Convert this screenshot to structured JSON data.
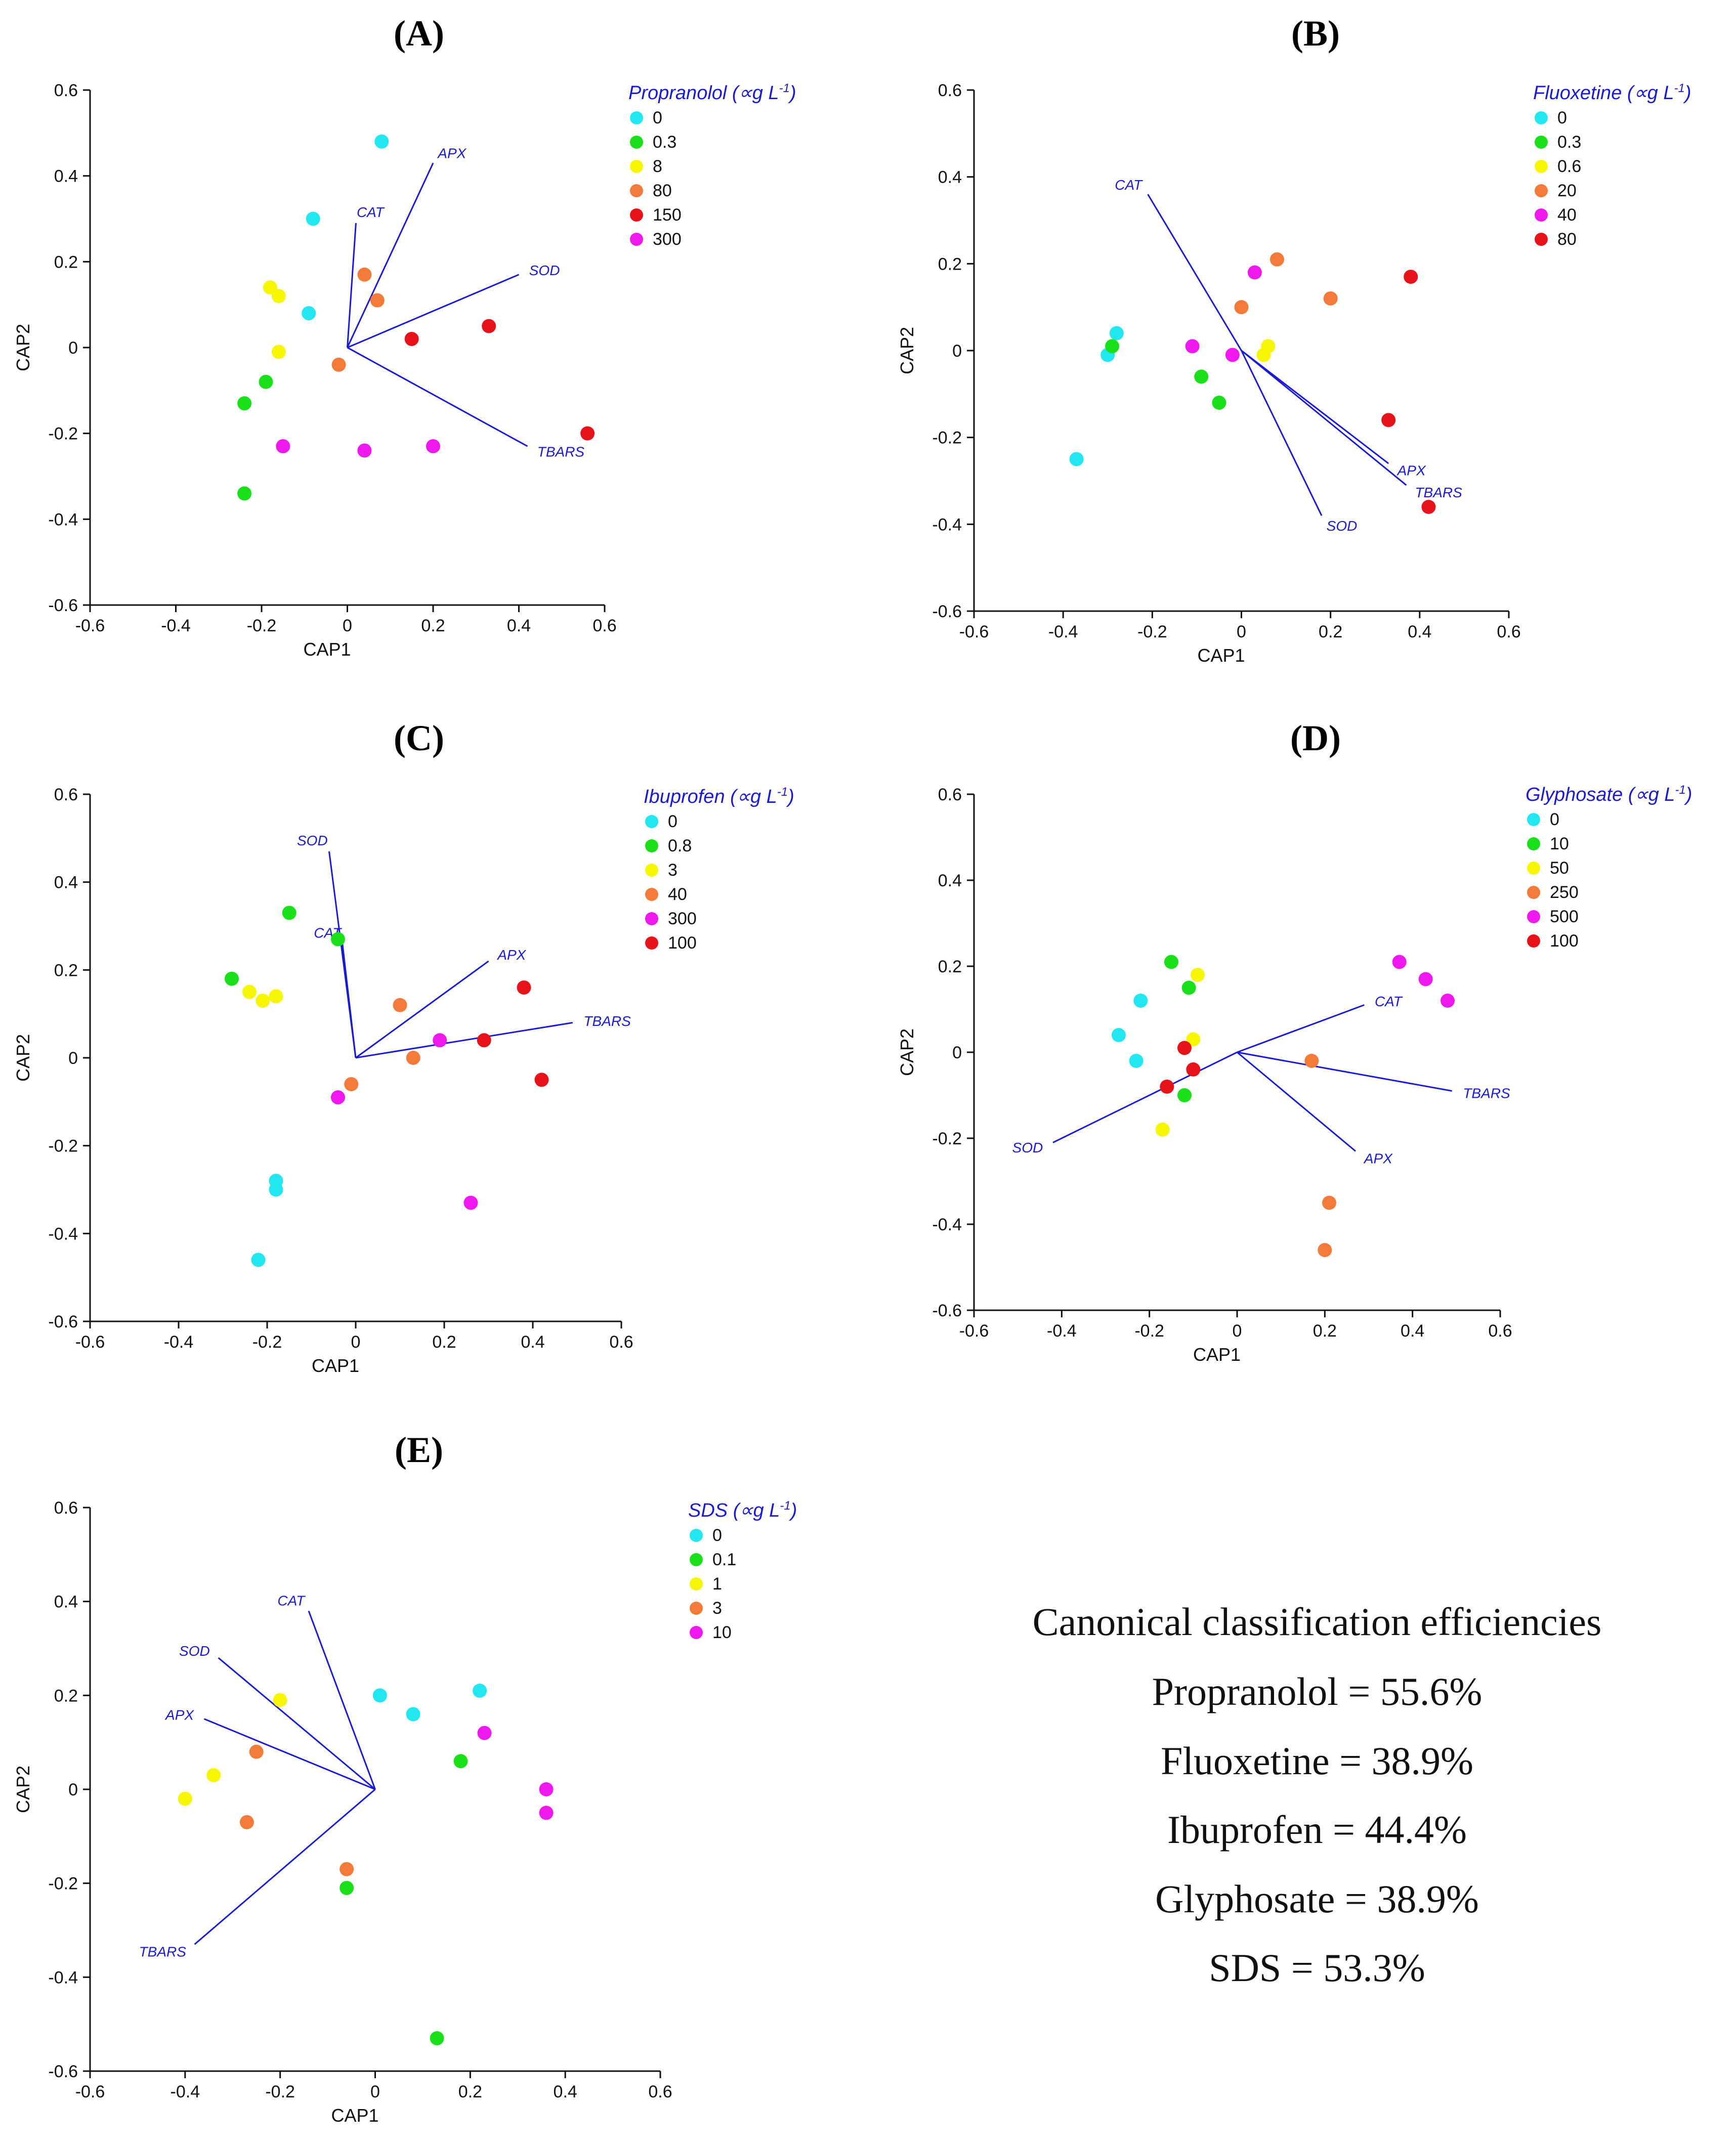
{
  "colors": {
    "cyan": "#22e6f0",
    "green": "#1ae01a",
    "yellow": "#f6f600",
    "orange": "#f47a3a",
    "red": "#e8121a",
    "magenta": "#ef18ef",
    "vector": "#1a1ad0",
    "axis": "#111111"
  },
  "chart_data": [
    {
      "type": "scatter",
      "panel": "(A)",
      "xlabel": "CAP1",
      "ylabel": "CAP2",
      "xlim": [
        -0.6,
        0.6
      ],
      "ylim": [
        -0.6,
        0.6
      ],
      "xticks": [
        "-0.6",
        "-0.4",
        "-0.2",
        "0",
        "0.2",
        "0.4",
        "0.6"
      ],
      "yticks": [
        "-0.6",
        "-0.4",
        "-0.2",
        "0",
        "0.2",
        "0.4",
        "0.6"
      ],
      "legend_title": "Propranolol (∝g L",
      "legend_sup": "-1",
      "legend_close": ")",
      "legend_placement": "top-right",
      "series": [
        {
          "name": "0",
          "color": "cyan",
          "points": [
            [
              0.08,
              0.48
            ],
            [
              -0.08,
              0.3
            ],
            [
              -0.09,
              0.08
            ]
          ]
        },
        {
          "name": "0.3",
          "color": "green",
          "points": [
            [
              -0.19,
              -0.08
            ],
            [
              -0.24,
              -0.13
            ],
            [
              -0.24,
              -0.34
            ]
          ]
        },
        {
          "name": "8",
          "color": "yellow",
          "points": [
            [
              -0.18,
              0.14
            ],
            [
              -0.16,
              0.12
            ],
            [
              -0.16,
              -0.01
            ]
          ]
        },
        {
          "name": "80",
          "color": "orange",
          "points": [
            [
              0.04,
              0.17
            ],
            [
              0.07,
              0.11
            ],
            [
              -0.02,
              -0.04
            ]
          ]
        },
        {
          "name": "150",
          "color": "red",
          "points": [
            [
              0.15,
              0.02
            ],
            [
              0.33,
              0.05
            ],
            [
              0.56,
              -0.2
            ]
          ]
        },
        {
          "name": "300",
          "color": "magenta",
          "points": [
            [
              -0.15,
              -0.23
            ],
            [
              0.04,
              -0.24
            ],
            [
              0.2,
              -0.23
            ]
          ]
        }
      ],
      "vectors": [
        {
          "name": "APX",
          "x": 0.2,
          "y": 0.43
        },
        {
          "name": "CAT",
          "x": 0.02,
          "y": 0.29
        },
        {
          "name": "SOD",
          "x": 0.4,
          "y": 0.17
        },
        {
          "name": "TBARS",
          "x": 0.42,
          "y": -0.23
        }
      ]
    },
    {
      "type": "scatter",
      "panel": "(B)",
      "xlabel": "CAP1",
      "ylabel": "CAP2",
      "xlim": [
        -0.6,
        0.6
      ],
      "ylim": [
        -0.6,
        0.6
      ],
      "xticks": [
        "-0.6",
        "-0.4",
        "-0.2",
        "0",
        "0.2",
        "0.4",
        "0.6"
      ],
      "yticks": [
        "-0.6",
        "-0.4",
        "-0.2",
        "0",
        "0.2",
        "0.4",
        "0.6"
      ],
      "legend_title": "Fluoxetine (∝g L",
      "legend_sup": "-1",
      "legend_close": ")",
      "legend_placement": "top-right",
      "series": [
        {
          "name": "0",
          "color": "cyan",
          "points": [
            [
              -0.28,
              0.04
            ],
            [
              -0.3,
              -0.01
            ],
            [
              -0.37,
              -0.25
            ]
          ]
        },
        {
          "name": "0.3",
          "color": "green",
          "points": [
            [
              -0.29,
              0.01
            ],
            [
              -0.09,
              -0.06
            ],
            [
              -0.05,
              -0.12
            ]
          ]
        },
        {
          "name": "0.6",
          "color": "yellow",
          "points": [
            [
              0.06,
              0.01
            ],
            [
              0.05,
              -0.01
            ]
          ]
        },
        {
          "name": "20",
          "color": "orange",
          "points": [
            [
              0.08,
              0.21
            ],
            [
              0.0,
              0.1
            ],
            [
              0.2,
              0.12
            ]
          ]
        },
        {
          "name": "40",
          "color": "magenta",
          "points": [
            [
              0.03,
              0.18
            ],
            [
              -0.11,
              0.01
            ],
            [
              -0.02,
              -0.01
            ]
          ]
        },
        {
          "name": "80",
          "color": "red",
          "points": [
            [
              0.38,
              0.17
            ],
            [
              0.33,
              -0.16
            ],
            [
              0.42,
              -0.36
            ]
          ]
        }
      ],
      "vectors": [
        {
          "name": "CAT",
          "x": -0.21,
          "y": 0.36
        },
        {
          "name": "APX",
          "x": 0.33,
          "y": -0.26
        },
        {
          "name": "TBARS",
          "x": 0.37,
          "y": -0.31
        },
        {
          "name": "SOD",
          "x": 0.18,
          "y": -0.38
        }
      ]
    },
    {
      "type": "scatter",
      "panel": "(C)",
      "xlabel": "CAP1",
      "ylabel": "CAP2",
      "xlim": [
        -0.6,
        0.6
      ],
      "ylim": [
        -0.6,
        0.6
      ],
      "xticks": [
        "-0.6",
        "-0.4",
        "-0.2",
        "0",
        "0.2",
        "0.4",
        "0.6"
      ],
      "yticks": [
        "-0.6",
        "-0.4",
        "-0.2",
        "0",
        "0.2",
        "0.4",
        "0.6"
      ],
      "legend_title": "Ibuprofen (∝g L",
      "legend_sup": "-1",
      "legend_close": ")",
      "legend_placement": "top-right",
      "series": [
        {
          "name": "0",
          "color": "cyan",
          "points": [
            [
              -0.18,
              -0.28
            ],
            [
              -0.18,
              -0.3
            ],
            [
              -0.22,
              -0.46
            ]
          ]
        },
        {
          "name": "0.8",
          "color": "green",
          "points": [
            [
              -0.15,
              0.33
            ],
            [
              -0.04,
              0.27
            ],
            [
              -0.28,
              0.18
            ]
          ]
        },
        {
          "name": "3",
          "color": "yellow",
          "points": [
            [
              -0.24,
              0.15
            ],
            [
              -0.18,
              0.14
            ],
            [
              -0.21,
              0.13
            ]
          ]
        },
        {
          "name": "40",
          "color": "orange",
          "points": [
            [
              0.1,
              0.12
            ],
            [
              0.13,
              0.0
            ],
            [
              -0.01,
              -0.06
            ]
          ]
        },
        {
          "name": "300",
          "color": "magenta",
          "points": [
            [
              0.19,
              0.04
            ],
            [
              -0.04,
              -0.09
            ],
            [
              0.26,
              -0.33
            ]
          ]
        },
        {
          "name": "100",
          "color": "red",
          "points": [
            [
              0.38,
              0.16
            ],
            [
              0.29,
              0.04
            ],
            [
              0.42,
              -0.05
            ]
          ]
        }
      ],
      "vectors": [
        {
          "name": "SOD",
          "x": -0.06,
          "y": 0.47
        },
        {
          "name": "CAT",
          "x": -0.03,
          "y": 0.26
        },
        {
          "name": "APX",
          "x": 0.3,
          "y": 0.22
        },
        {
          "name": "TBARS",
          "x": 0.49,
          "y": 0.08
        }
      ]
    },
    {
      "type": "scatter",
      "panel": "(D)",
      "xlabel": "CAP1",
      "ylabel": "CAP2",
      "xlim": [
        -0.6,
        0.6
      ],
      "ylim": [
        -0.6,
        0.6
      ],
      "xticks": [
        "-0.6",
        "-0.4",
        "-0.2",
        "0",
        "0.2",
        "0.4",
        "0.6"
      ],
      "yticks": [
        "-0.6",
        "-0.4",
        "-0.2",
        "0",
        "0.2",
        "0.4",
        "0.6"
      ],
      "legend_title": "Glyphosate (∝g L",
      "legend_sup": "-1",
      "legend_close": ")",
      "legend_placement": "top-right",
      "series": [
        {
          "name": "0",
          "color": "cyan",
          "points": [
            [
              -0.22,
              0.12
            ],
            [
              -0.27,
              0.04
            ],
            [
              -0.23,
              -0.02
            ]
          ]
        },
        {
          "name": "10",
          "color": "green",
          "points": [
            [
              -0.15,
              0.21
            ],
            [
              -0.11,
              0.15
            ],
            [
              -0.12,
              -0.1
            ]
          ]
        },
        {
          "name": "50",
          "color": "yellow",
          "points": [
            [
              -0.09,
              0.18
            ],
            [
              -0.1,
              0.03
            ],
            [
              -0.17,
              -0.18
            ]
          ]
        },
        {
          "name": "250",
          "color": "orange",
          "points": [
            [
              0.17,
              -0.02
            ],
            [
              0.21,
              -0.35
            ],
            [
              0.2,
              -0.46
            ]
          ]
        },
        {
          "name": "500",
          "color": "magenta",
          "points": [
            [
              0.37,
              0.21
            ],
            [
              0.43,
              0.17
            ],
            [
              0.48,
              0.12
            ]
          ]
        },
        {
          "name": "100",
          "color": "red",
          "points": [
            [
              -0.12,
              0.01
            ],
            [
              -0.1,
              -0.04
            ],
            [
              -0.16,
              -0.08
            ]
          ]
        }
      ],
      "vectors": [
        {
          "name": "CAT",
          "x": 0.29,
          "y": 0.11
        },
        {
          "name": "TBARS",
          "x": 0.49,
          "y": -0.09
        },
        {
          "name": "APX",
          "x": 0.27,
          "y": -0.23
        },
        {
          "name": "SOD",
          "x": -0.42,
          "y": -0.21
        }
      ]
    },
    {
      "type": "scatter",
      "panel": "(E)",
      "xlabel": "CAP1",
      "ylabel": "CAP2",
      "xlim": [
        -0.6,
        0.6
      ],
      "ylim": [
        -0.6,
        0.6
      ],
      "xticks": [
        "-0.6",
        "-0.4",
        "-0.2",
        "0",
        "0.2",
        "0.4",
        "0.6"
      ],
      "yticks": [
        "-0.6",
        "-0.4",
        "-0.2",
        "0",
        "0.2",
        "0.4",
        "0.6"
      ],
      "legend_title": "SDS (∝g L",
      "legend_sup": "-1",
      "legend_close": ")",
      "legend_placement": "top-right",
      "series": [
        {
          "name": "0",
          "color": "cyan",
          "points": [
            [
              0.22,
              0.21
            ],
            [
              0.01,
              0.2
            ],
            [
              0.08,
              0.16
            ]
          ]
        },
        {
          "name": "0.1",
          "color": "green",
          "points": [
            [
              0.18,
              0.06
            ],
            [
              -0.06,
              -0.21
            ],
            [
              0.13,
              -0.53
            ]
          ]
        },
        {
          "name": "1",
          "color": "yellow",
          "points": [
            [
              -0.2,
              0.19
            ],
            [
              -0.34,
              0.03
            ],
            [
              -0.4,
              -0.02
            ]
          ]
        },
        {
          "name": "3",
          "color": "orange",
          "points": [
            [
              -0.25,
              0.08
            ],
            [
              -0.27,
              -0.07
            ],
            [
              -0.06,
              -0.17
            ]
          ]
        },
        {
          "name": "10",
          "color": "magenta",
          "points": [
            [
              0.23,
              0.12
            ],
            [
              0.36,
              0.0
            ],
            [
              0.36,
              -0.05
            ]
          ]
        }
      ],
      "vectors": [
        {
          "name": "CAT",
          "x": -0.14,
          "y": 0.38
        },
        {
          "name": "SOD",
          "x": -0.33,
          "y": 0.28
        },
        {
          "name": "APX",
          "x": -0.36,
          "y": 0.15
        },
        {
          "name": "TBARS",
          "x": -0.38,
          "y": -0.33
        }
      ]
    }
  ],
  "summary": {
    "title": "Canonical classification efficiencies",
    "lines": [
      "Propranolol = 55.6%",
      "Fluoxetine = 38.9%",
      "Ibuprofen = 44.4%",
      "Glyphosate = 38.9%",
      "SDS = 53.3%"
    ]
  }
}
